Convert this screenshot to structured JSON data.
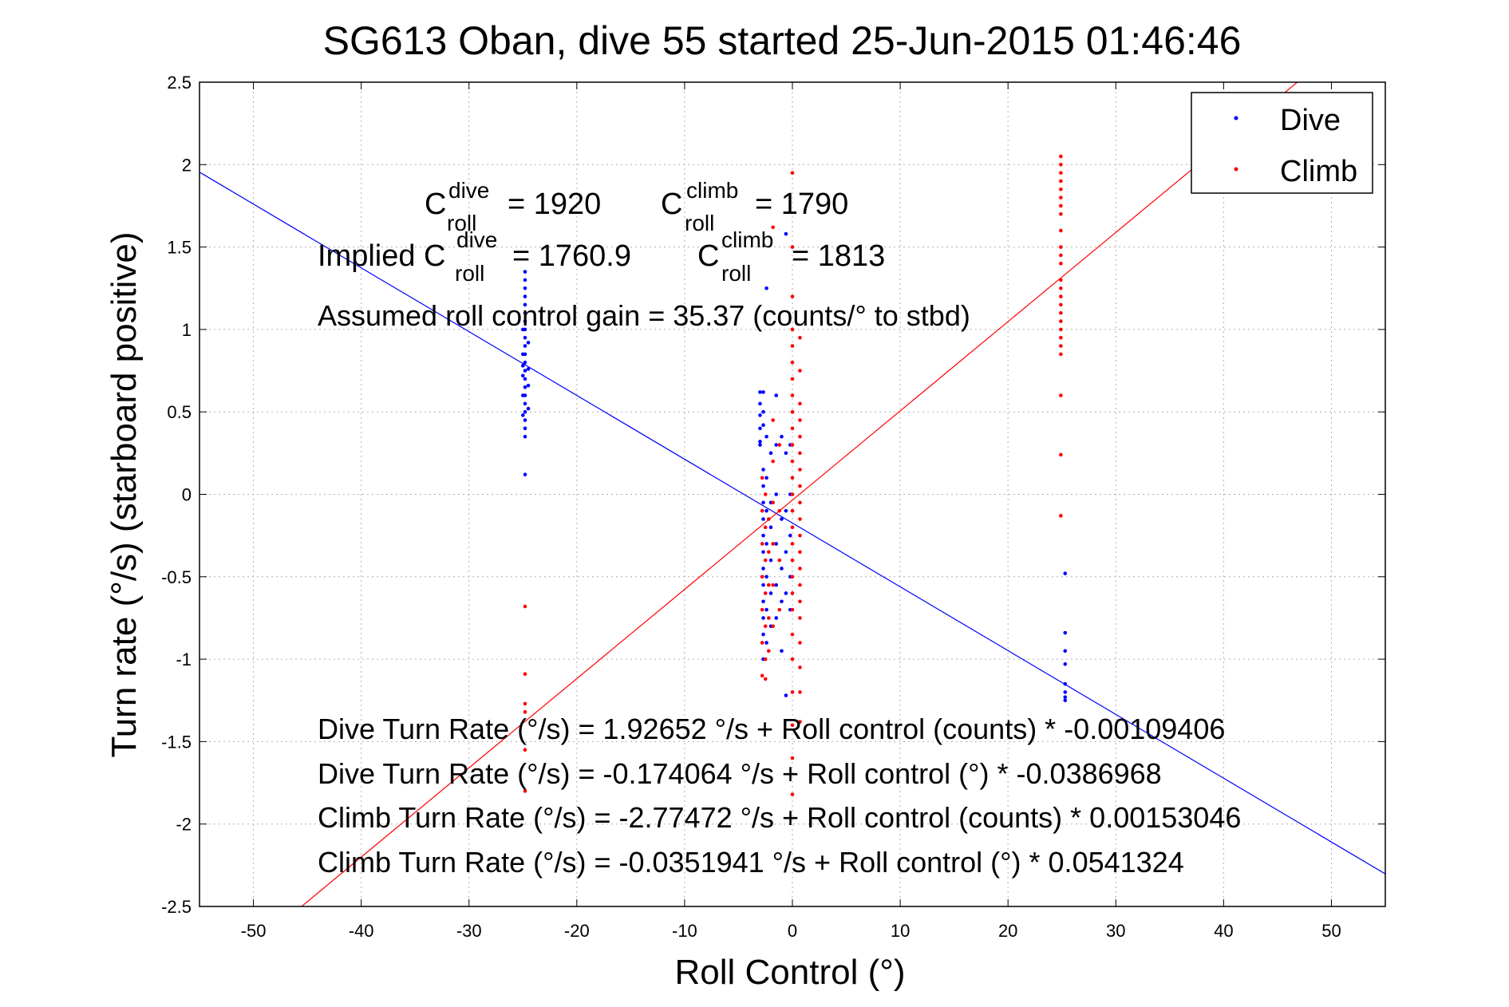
{
  "chart_data": {
    "type": "scatter",
    "title": "SG613 Oban, dive 55 started 25-Jun-2015 01:46:46",
    "xlabel": "Roll Control (°)",
    "ylabel": "Turn rate (°/s) (starboard positive)",
    "xlim": [
      -55,
      55
    ],
    "ylim": [
      -2.5,
      2.5
    ],
    "xticks": [
      -50,
      -40,
      -30,
      -20,
      -10,
      0,
      10,
      20,
      30,
      40,
      50
    ],
    "yticks": [
      -2.5,
      -2,
      -1.5,
      -1,
      -0.5,
      0,
      0.5,
      1,
      1.5,
      2,
      2.5
    ],
    "grid": true,
    "legend_position": "top-right",
    "colors": {
      "dive": "#0000ff",
      "climb": "#ff0000"
    },
    "series": [
      {
        "name": "Dive",
        "color": "#0000ff",
        "points": [
          [
            -24.8,
            1.35
          ],
          [
            -24.8,
            1.3
          ],
          [
            -24.8,
            1.25
          ],
          [
            -24.8,
            1.2
          ],
          [
            -24.8,
            1.15
          ],
          [
            -24.8,
            1.1
          ],
          [
            -24.8,
            1.05
          ],
          [
            -24.8,
            1.0
          ],
          [
            -24.8,
            0.95
          ],
          [
            -24.8,
            0.9
          ],
          [
            -24.8,
            0.85
          ],
          [
            -24.8,
            0.8
          ],
          [
            -24.8,
            0.75
          ],
          [
            -24.8,
            0.7
          ],
          [
            -24.8,
            0.65
          ],
          [
            -24.8,
            0.6
          ],
          [
            -24.8,
            0.55
          ],
          [
            -24.8,
            0.5
          ],
          [
            -24.8,
            0.45
          ],
          [
            -24.8,
            0.4
          ],
          [
            -24.8,
            0.35
          ],
          [
            -24.8,
            0.12
          ],
          [
            -25.0,
            1.0
          ],
          [
            -25.0,
            0.85
          ],
          [
            -25.0,
            0.78
          ],
          [
            -25.0,
            0.72
          ],
          [
            -25.0,
            0.6
          ],
          [
            -25.0,
            0.48
          ],
          [
            -24.5,
            0.92
          ],
          [
            -24.5,
            0.76
          ],
          [
            -24.5,
            0.66
          ],
          [
            -24.5,
            0.52
          ],
          [
            -3.0,
            0.62
          ],
          [
            -3.0,
            0.55
          ],
          [
            -3.0,
            0.48
          ],
          [
            -3.0,
            0.4
          ],
          [
            -3.0,
            0.32
          ],
          [
            -3.0,
            0.3
          ],
          [
            -2.7,
            0.62
          ],
          [
            -2.7,
            0.5
          ],
          [
            -2.7,
            0.42
          ],
          [
            -2.7,
            0.15
          ],
          [
            -2.7,
            0.05
          ],
          [
            -2.7,
            -0.05
          ],
          [
            -2.7,
            -0.15
          ],
          [
            -2.7,
            -0.25
          ],
          [
            -2.7,
            -0.35
          ],
          [
            -2.7,
            -0.45
          ],
          [
            -2.7,
            -0.55
          ],
          [
            -2.7,
            -0.65
          ],
          [
            -2.7,
            -0.75
          ],
          [
            -2.7,
            -0.85
          ],
          [
            -2.7,
            -1.0
          ],
          [
            -2.4,
            1.25
          ],
          [
            -2.4,
            0.35
          ],
          [
            -2.4,
            0.1
          ],
          [
            -2.4,
            -0.1
          ],
          [
            -2.4,
            -0.3
          ],
          [
            -2.4,
            -0.5
          ],
          [
            -2.4,
            -0.7
          ],
          [
            -2.4,
            -0.9
          ],
          [
            -2.0,
            0.25
          ],
          [
            -2.0,
            -0.05
          ],
          [
            -2.0,
            -0.2
          ],
          [
            -2.0,
            -0.4
          ],
          [
            -2.0,
            -0.6
          ],
          [
            -2.0,
            -0.8
          ],
          [
            -1.5,
            0.6
          ],
          [
            -1.5,
            0.3
          ],
          [
            -1.5,
            0.0
          ],
          [
            -1.5,
            -0.3
          ],
          [
            -1.5,
            -0.55
          ],
          [
            -1.5,
            -0.75
          ],
          [
            -1.0,
            0.35
          ],
          [
            -1.0,
            -0.15
          ],
          [
            -1.0,
            -0.45
          ],
          [
            -1.0,
            -0.65
          ],
          [
            -1.0,
            -0.95
          ],
          [
            -0.6,
            1.58
          ],
          [
            -0.6,
            0.25
          ],
          [
            -0.6,
            -0.1
          ],
          [
            -0.6,
            -0.35
          ],
          [
            -0.6,
            -0.6
          ],
          [
            -0.6,
            -1.22
          ],
          [
            -0.2,
            0.3
          ],
          [
            -0.2,
            0.0
          ],
          [
            -0.2,
            -0.25
          ],
          [
            -0.2,
            -0.5
          ],
          [
            -0.2,
            -0.7
          ],
          [
            25.3,
            -0.48
          ],
          [
            25.3,
            -0.84
          ],
          [
            25.3,
            -0.95
          ],
          [
            25.3,
            -1.03
          ],
          [
            25.3,
            -1.15
          ],
          [
            25.3,
            -1.2
          ],
          [
            25.3,
            -1.23
          ],
          [
            25.3,
            -1.25
          ]
        ]
      },
      {
        "name": "Climb",
        "color": "#ff0000",
        "points": [
          [
            -24.8,
            -0.68
          ],
          [
            -24.8,
            -1.09
          ],
          [
            -24.8,
            -1.27
          ],
          [
            -24.8,
            -1.32
          ],
          [
            -24.8,
            -1.55
          ],
          [
            -24.8,
            -1.8
          ],
          [
            -2.8,
            0.1
          ],
          [
            -2.8,
            -0.1
          ],
          [
            -2.8,
            -0.3
          ],
          [
            -2.8,
            -0.5
          ],
          [
            -2.8,
            -0.7
          ],
          [
            -2.8,
            -0.9
          ],
          [
            -2.8,
            -1.1
          ],
          [
            -2.5,
            0.0
          ],
          [
            -2.5,
            -0.2
          ],
          [
            -2.5,
            -0.4
          ],
          [
            -2.5,
            -0.6
          ],
          [
            -2.5,
            -0.8
          ],
          [
            -2.5,
            -1.0
          ],
          [
            -2.5,
            -1.12
          ],
          [
            -2.2,
            -0.15
          ],
          [
            -2.2,
            -0.35
          ],
          [
            -2.2,
            -0.55
          ],
          [
            -2.2,
            -0.75
          ],
          [
            -2.2,
            -0.95
          ],
          [
            -1.8,
            1.62
          ],
          [
            -1.8,
            0.45
          ],
          [
            -1.8,
            0.2
          ],
          [
            -1.8,
            -0.05
          ],
          [
            -1.8,
            -0.3
          ],
          [
            -1.8,
            -0.55
          ],
          [
            -1.8,
            -0.8
          ],
          [
            -1.2,
            0.3
          ],
          [
            -1.2,
            -0.1
          ],
          [
            -1.2,
            -0.4
          ],
          [
            -1.2,
            -0.7
          ],
          [
            0.0,
            1.95
          ],
          [
            0.0,
            1.5
          ],
          [
            0.0,
            1.2
          ],
          [
            0.0,
            1.0
          ],
          [
            0.0,
            0.9
          ],
          [
            0.0,
            0.8
          ],
          [
            0.0,
            0.7
          ],
          [
            0.0,
            0.6
          ],
          [
            0.0,
            0.5
          ],
          [
            0.0,
            0.4
          ],
          [
            0.0,
            0.3
          ],
          [
            0.0,
            0.2
          ],
          [
            0.0,
            0.1
          ],
          [
            0.0,
            0.0
          ],
          [
            0.0,
            -0.1
          ],
          [
            0.0,
            -0.2
          ],
          [
            0.0,
            -0.3
          ],
          [
            0.0,
            -0.4
          ],
          [
            0.0,
            -0.5
          ],
          [
            0.0,
            -0.6
          ],
          [
            0.0,
            -0.7
          ],
          [
            0.0,
            -0.85
          ],
          [
            0.0,
            -1.0
          ],
          [
            0.0,
            -1.2
          ],
          [
            0.0,
            -1.4
          ],
          [
            0.0,
            -1.6
          ],
          [
            0.0,
            -1.82
          ],
          [
            0.7,
            0.95
          ],
          [
            0.7,
            0.75
          ],
          [
            0.7,
            0.55
          ],
          [
            0.7,
            0.45
          ],
          [
            0.7,
            0.35
          ],
          [
            0.7,
            0.25
          ],
          [
            0.7,
            0.15
          ],
          [
            0.7,
            0.05
          ],
          [
            0.7,
            -0.05
          ],
          [
            0.7,
            -0.15
          ],
          [
            0.7,
            -0.25
          ],
          [
            0.7,
            -0.35
          ],
          [
            0.7,
            -0.45
          ],
          [
            0.7,
            -0.55
          ],
          [
            0.7,
            -0.65
          ],
          [
            0.7,
            -0.75
          ],
          [
            0.7,
            -0.9
          ],
          [
            0.7,
            -1.05
          ],
          [
            0.7,
            -1.2
          ],
          [
            0.7,
            -1.38
          ],
          [
            24.9,
            2.05
          ],
          [
            24.9,
            2.0
          ],
          [
            24.9,
            1.95
          ],
          [
            24.9,
            1.9
          ],
          [
            24.9,
            1.85
          ],
          [
            24.9,
            1.8
          ],
          [
            24.9,
            1.75
          ],
          [
            24.9,
            1.7
          ],
          [
            24.9,
            1.6
          ],
          [
            24.9,
            1.5
          ],
          [
            24.9,
            1.45
          ],
          [
            24.9,
            1.4
          ],
          [
            24.9,
            1.3
          ],
          [
            24.9,
            1.25
          ],
          [
            24.9,
            1.2
          ],
          [
            24.9,
            1.15
          ],
          [
            24.9,
            1.1
          ],
          [
            24.9,
            1.05
          ],
          [
            24.9,
            1.0
          ],
          [
            24.9,
            0.95
          ],
          [
            24.9,
            0.9
          ],
          [
            24.9,
            0.85
          ],
          [
            24.9,
            0.6
          ],
          [
            24.9,
            0.24
          ],
          [
            24.9,
            -0.13
          ]
        ]
      }
    ],
    "fit_lines": [
      {
        "series": "Dive",
        "color": "#0000ff",
        "intercept": -0.174064,
        "slope": -0.0386968
      },
      {
        "series": "Climb",
        "color": "#ff0000",
        "intercept": -0.0351941,
        "slope": 0.0541324
      }
    ],
    "annotations": {
      "c_dive_main": "C",
      "c_dive_sup": "dive",
      "c_dive_sub": "roll",
      "c_dive_value": "= 1920",
      "c_climb_main": "C",
      "c_climb_sup": "climb",
      "c_climb_sub": "roll",
      "c_climb_value": "= 1790",
      "implied_prefix": "Implied C",
      "implied_dive_sup": "dive",
      "implied_dive_sub": "roll",
      "implied_dive_value": "= 1760.9",
      "implied_climb_main": "C",
      "implied_climb_sup": "climb",
      "implied_climb_sub": "roll",
      "implied_climb_value": "= 1813",
      "gain": "Assumed roll control gain = 35.37 (counts/° to stbd)",
      "eq1": "Dive Turn Rate (°/s) = 1.92652 °/s + Roll control (counts) * -0.00109406",
      "eq2": "Dive Turn Rate (°/s) = -0.174064 °/s + Roll control (°) * -0.0386968",
      "eq3": "Climb Turn Rate (°/s) = -2.77472 °/s + Roll control (counts) * 0.00153046",
      "eq4": "Climb Turn Rate (°/s) = -0.0351941 °/s + Roll control (°) * 0.0541324"
    }
  }
}
